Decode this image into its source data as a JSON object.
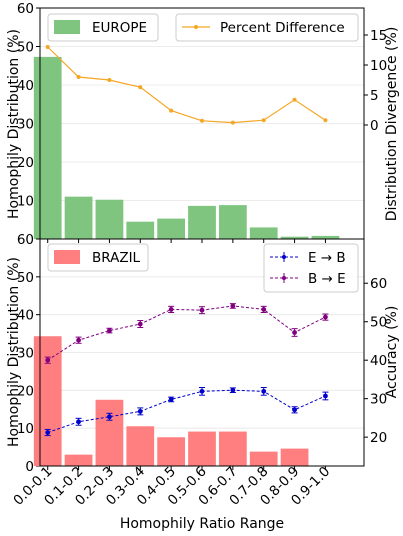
{
  "chart_data": [
    {
      "type": "bar",
      "panel": "top",
      "categories": [
        "0.0-0.1",
        "0.1-0.2",
        "0.2-0.3",
        "0.3-0.4",
        "0.4-0.5",
        "0.5-0.6",
        "0.6-0.7",
        "0.7-0.8",
        "0.8-0.9",
        "0.9-1.0"
      ],
      "bar_series": {
        "name": "EUROPE",
        "color": "#7fc47f",
        "values": [
          47.3,
          11.0,
          10.2,
          4.5,
          5.3,
          8.6,
          8.8,
          3.0,
          0.6,
          0.8
        ]
      },
      "line_series": {
        "name": "Percent Difference",
        "color": "#f5a623",
        "values": [
          13,
          8,
          7.5,
          6.3,
          2.4,
          0.7,
          0.4,
          0.8,
          4.2,
          0.8
        ]
      },
      "ylabel": "Homophily Distribution (%)",
      "y2label": "Distribution Divergence (%)",
      "ylim": [
        0,
        60
      ],
      "y2lim": [
        -19,
        19.5
      ],
      "yticks": [
        "10",
        "20",
        "30",
        "40",
        "50",
        "60"
      ],
      "y2ticks": [
        "0",
        "5",
        "10",
        "15"
      ],
      "grid": true,
      "legend_placement": "top"
    },
    {
      "type": "bar",
      "panel": "bottom",
      "categories": [
        "0.0-0.1",
        "0.1-0.2",
        "0.2-0.3",
        "0.3-0.4",
        "0.4-0.5",
        "0.5-0.6",
        "0.6-0.7",
        "0.7-0.8",
        "0.8-0.9",
        "0.9-1.0"
      ],
      "bar_series": {
        "name": "BRAZIL",
        "color": "#ff7f80",
        "values": [
          34.3,
          3.0,
          17.5,
          10.5,
          7.6,
          9.1,
          9.1,
          3.8,
          4.6,
          0
        ]
      },
      "line_series": [
        {
          "name": "E → B",
          "color": "#0000cc",
          "values": [
            21.2,
            24.0,
            25.3,
            26.7,
            29.8,
            31.9,
            32.2,
            31.9,
            27.1,
            30.7
          ],
          "errors": [
            0.8,
            0.9,
            0.9,
            0.9,
            0.6,
            1.0,
            0.6,
            1.0,
            0.8,
            1.0
          ]
        },
        {
          "name": "B → E",
          "color": "#800080",
          "values": [
            40.0,
            45.2,
            47.7,
            49.4,
            53.2,
            53.0,
            54.1,
            53.2,
            47.2,
            51.2
          ],
          "errors": [
            0.8,
            0.8,
            0.6,
            0.9,
            0.8,
            0.9,
            0.6,
            0.8,
            1.0,
            0.8
          ]
        }
      ],
      "xlabel": "Homophily Ratio Range",
      "ylabel": "Homophily Distribution (%)",
      "y2label": "Accuracy (%)",
      "ylim": [
        0,
        60
      ],
      "y2lim": [
        12.5,
        71.5
      ],
      "yticks": [
        "0",
        "10",
        "20",
        "30",
        "40",
        "50",
        "60"
      ],
      "y2ticks": [
        "20",
        "30",
        "40",
        "50",
        "60"
      ],
      "grid": true,
      "legend_placement": "top"
    }
  ]
}
